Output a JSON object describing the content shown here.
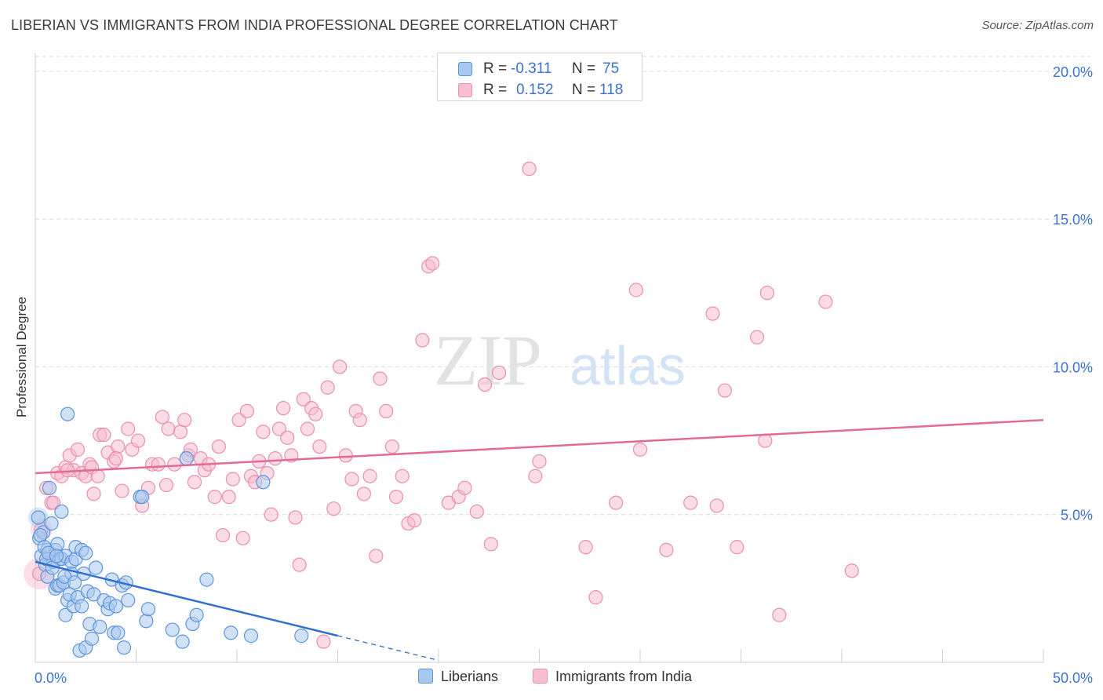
{
  "title": "LIBERIAN VS IMMIGRANTS FROM INDIA PROFESSIONAL DEGREE CORRELATION CHART",
  "source": "Source: ZipAtlas.com",
  "watermark": {
    "zip": "ZIP",
    "atlas": "atlas"
  },
  "legend_top": {
    "rows": [
      {
        "r_label": "R =",
        "r_value": "-0.311",
        "n_label": "N =",
        "n_value": "75"
      },
      {
        "r_label": "R =",
        "r_value": "0.152",
        "n_label": "N =",
        "n_value": "118"
      }
    ]
  },
  "legend_bottom": {
    "series1": "Liberians",
    "series2": "Immigrants from India"
  },
  "colors": {
    "blue_fill": "#a9c8ef",
    "blue_stroke": "#5d95dd",
    "blue_line": "#2f6fd0",
    "pink_fill": "#f7bdd0",
    "pink_stroke": "#ea8fad",
    "pink_line": "#e26b96",
    "axis_text": "#3b73d0",
    "grid": "#d9d9d9"
  },
  "chart_data": {
    "type": "scatter",
    "title": "LIBERIAN VS IMMIGRANTS FROM INDIA PROFESSIONAL DEGREE CORRELATION CHART",
    "xlabel": "",
    "ylabel": "Professional Degree",
    "xlim": [
      0,
      50
    ],
    "ylim": [
      0,
      20.5
    ],
    "x_tick_labels": [
      {
        "value": 0,
        "label": "0.0%"
      },
      {
        "value": 50,
        "label": "50.0%"
      }
    ],
    "x_minor_ticks": [
      5,
      10,
      15,
      20,
      25,
      30,
      35,
      40,
      45,
      50
    ],
    "y_ticks": [
      {
        "value": 5,
        "label": "5.0%"
      },
      {
        "value": 10,
        "label": "10.0%"
      },
      {
        "value": 15,
        "label": "15.0%"
      },
      {
        "value": 20,
        "label": "20.0%"
      }
    ],
    "grid": "horizontal dashed",
    "legend_placement": "bottom-center",
    "series": [
      {
        "name": "Liberians",
        "R": -0.311,
        "N": 75,
        "trend": {
          "x": [
            0,
            15
          ],
          "y": [
            3.4,
            0.9
          ],
          "dashed_extension_to_x": 20
        },
        "points": [
          [
            0.2,
            4.2
          ],
          [
            0.3,
            3.6
          ],
          [
            0.4,
            4.4
          ],
          [
            0.5,
            3.3
          ],
          [
            0.6,
            3.8
          ],
          [
            0.6,
            2.9
          ],
          [
            0.7,
            5.9
          ],
          [
            0.8,
            4.7
          ],
          [
            0.9,
            3.4
          ],
          [
            1.0,
            2.5
          ],
          [
            1.0,
            3.8
          ],
          [
            1.1,
            2.6
          ],
          [
            1.1,
            4.0
          ],
          [
            1.2,
            3.5
          ],
          [
            1.2,
            2.6
          ],
          [
            1.3,
            3.5
          ],
          [
            1.3,
            5.1
          ],
          [
            1.4,
            2.7
          ],
          [
            1.5,
            1.6
          ],
          [
            1.5,
            3.6
          ],
          [
            1.6,
            8.4
          ],
          [
            1.6,
            2.1
          ],
          [
            1.7,
            2.3
          ],
          [
            1.8,
            3.4
          ],
          [
            1.8,
            3.0
          ],
          [
            1.9,
            1.9
          ],
          [
            2.0,
            3.9
          ],
          [
            2.0,
            3.5
          ],
          [
            2.1,
            2.2
          ],
          [
            2.2,
            0.4
          ],
          [
            2.3,
            1.9
          ],
          [
            2.3,
            3.8
          ],
          [
            2.4,
            3.0
          ],
          [
            2.5,
            0.5
          ],
          [
            2.5,
            3.7
          ],
          [
            2.6,
            2.4
          ],
          [
            2.7,
            1.3
          ],
          [
            2.8,
            0.8
          ],
          [
            2.9,
            2.3
          ],
          [
            3.0,
            3.2
          ],
          [
            3.2,
            1.2
          ],
          [
            3.4,
            2.1
          ],
          [
            3.6,
            1.8
          ],
          [
            3.7,
            2.0
          ],
          [
            3.8,
            2.8
          ],
          [
            3.9,
            1.0
          ],
          [
            4.0,
            1.9
          ],
          [
            4.1,
            1.0
          ],
          [
            4.3,
            2.6
          ],
          [
            4.4,
            0.5
          ],
          [
            4.5,
            2.7
          ],
          [
            4.6,
            2.1
          ],
          [
            5.2,
            5.6
          ],
          [
            5.3,
            5.6
          ],
          [
            5.5,
            1.4
          ],
          [
            5.6,
            1.8
          ],
          [
            6.8,
            1.1
          ],
          [
            7.3,
            0.7
          ],
          [
            7.5,
            6.9
          ],
          [
            7.8,
            1.3
          ],
          [
            8.0,
            1.6
          ],
          [
            8.5,
            2.8
          ],
          [
            9.7,
            1.0
          ],
          [
            10.7,
            0.9
          ],
          [
            11.3,
            6.1
          ],
          [
            13.2,
            0.9
          ],
          [
            0.15,
            4.9
          ],
          [
            0.25,
            4.3
          ],
          [
            0.45,
            3.9
          ],
          [
            0.55,
            3.5
          ],
          [
            0.65,
            3.7
          ],
          [
            0.85,
            3.2
          ],
          [
            1.05,
            3.6
          ],
          [
            1.45,
            2.9
          ],
          [
            1.95,
            2.7
          ]
        ]
      },
      {
        "name": "Immigrants from India",
        "R": 0.152,
        "N": 118,
        "trend": {
          "x": [
            0,
            50
          ],
          "y": [
            6.4,
            8.2
          ]
        },
        "points": [
          [
            0.2,
            3.0
          ],
          [
            0.3,
            4.5
          ],
          [
            0.8,
            5.4
          ],
          [
            0.9,
            5.4
          ],
          [
            1.1,
            6.4
          ],
          [
            1.3,
            6.3
          ],
          [
            1.5,
            6.6
          ],
          [
            1.7,
            7.0
          ],
          [
            1.9,
            6.5
          ],
          [
            2.1,
            7.2
          ],
          [
            2.3,
            6.4
          ],
          [
            2.5,
            6.3
          ],
          [
            2.7,
            6.7
          ],
          [
            2.8,
            6.6
          ],
          [
            2.9,
            5.7
          ],
          [
            3.2,
            7.7
          ],
          [
            3.4,
            7.7
          ],
          [
            3.6,
            7.1
          ],
          [
            3.9,
            6.8
          ],
          [
            4.1,
            7.3
          ],
          [
            4.3,
            5.8
          ],
          [
            4.6,
            7.9
          ],
          [
            4.8,
            7.2
          ],
          [
            5.1,
            7.5
          ],
          [
            5.3,
            5.3
          ],
          [
            5.6,
            5.9
          ],
          [
            5.8,
            6.7
          ],
          [
            6.1,
            6.7
          ],
          [
            6.3,
            8.3
          ],
          [
            6.5,
            6.0
          ],
          [
            6.6,
            7.9
          ],
          [
            6.9,
            6.7
          ],
          [
            7.2,
            7.8
          ],
          [
            7.4,
            8.2
          ],
          [
            7.6,
            7.0
          ],
          [
            7.7,
            7.2
          ],
          [
            7.9,
            6.1
          ],
          [
            8.2,
            6.9
          ],
          [
            8.4,
            6.5
          ],
          [
            8.6,
            6.7
          ],
          [
            8.9,
            5.6
          ],
          [
            9.1,
            7.3
          ],
          [
            9.3,
            4.3
          ],
          [
            9.6,
            5.6
          ],
          [
            9.8,
            6.2
          ],
          [
            10.1,
            8.2
          ],
          [
            10.3,
            4.2
          ],
          [
            10.5,
            8.5
          ],
          [
            10.7,
            6.3
          ],
          [
            10.9,
            6.1
          ],
          [
            11.1,
            6.8
          ],
          [
            11.3,
            7.8
          ],
          [
            11.5,
            6.4
          ],
          [
            11.7,
            5.0
          ],
          [
            11.9,
            6.9
          ],
          [
            12.1,
            7.9
          ],
          [
            12.3,
            8.6
          ],
          [
            12.5,
            7.6
          ],
          [
            12.7,
            7.0
          ],
          [
            12.9,
            4.9
          ],
          [
            13.1,
            3.3
          ],
          [
            13.3,
            8.9
          ],
          [
            13.5,
            7.9
          ],
          [
            13.7,
            8.6
          ],
          [
            13.9,
            8.4
          ],
          [
            14.1,
            7.3
          ],
          [
            14.3,
            0.7
          ],
          [
            14.5,
            9.3
          ],
          [
            14.8,
            5.2
          ],
          [
            15.1,
            10.0
          ],
          [
            15.4,
            7.0
          ],
          [
            15.7,
            6.2
          ],
          [
            15.9,
            8.5
          ],
          [
            16.1,
            8.2
          ],
          [
            16.3,
            5.7
          ],
          [
            16.6,
            6.3
          ],
          [
            16.9,
            3.6
          ],
          [
            17.1,
            9.6
          ],
          [
            17.4,
            8.5
          ],
          [
            17.7,
            7.3
          ],
          [
            17.9,
            5.6
          ],
          [
            18.2,
            6.3
          ],
          [
            18.5,
            4.7
          ],
          [
            18.8,
            4.8
          ],
          [
            19.2,
            10.9
          ],
          [
            19.5,
            13.4
          ],
          [
            19.7,
            13.5
          ],
          [
            20.5,
            5.4
          ],
          [
            21.0,
            5.6
          ],
          [
            21.3,
            5.9
          ],
          [
            21.9,
            5.1
          ],
          [
            22.3,
            9.4
          ],
          [
            22.6,
            4.0
          ],
          [
            23.0,
            9.8
          ],
          [
            24.5,
            16.7
          ],
          [
            25.0,
            6.8
          ],
          [
            24.8,
            6.3
          ],
          [
            27.3,
            3.9
          ],
          [
            27.8,
            2.2
          ],
          [
            28.8,
            5.4
          ],
          [
            29.8,
            12.6
          ],
          [
            30.0,
            7.2
          ],
          [
            31.3,
            3.8
          ],
          [
            32.5,
            5.4
          ],
          [
            33.8,
            5.3
          ],
          [
            33.6,
            11.8
          ],
          [
            34.2,
            9.2
          ],
          [
            34.8,
            3.9
          ],
          [
            35.8,
            11.0
          ],
          [
            36.2,
            7.5
          ],
          [
            36.3,
            12.5
          ],
          [
            36.9,
            1.6
          ],
          [
            39.2,
            12.2
          ],
          [
            40.5,
            3.1
          ],
          [
            0.55,
            5.9
          ],
          [
            1.6,
            6.5
          ],
          [
            3.1,
            6.3
          ],
          [
            4.0,
            6.9
          ]
        ]
      }
    ]
  }
}
